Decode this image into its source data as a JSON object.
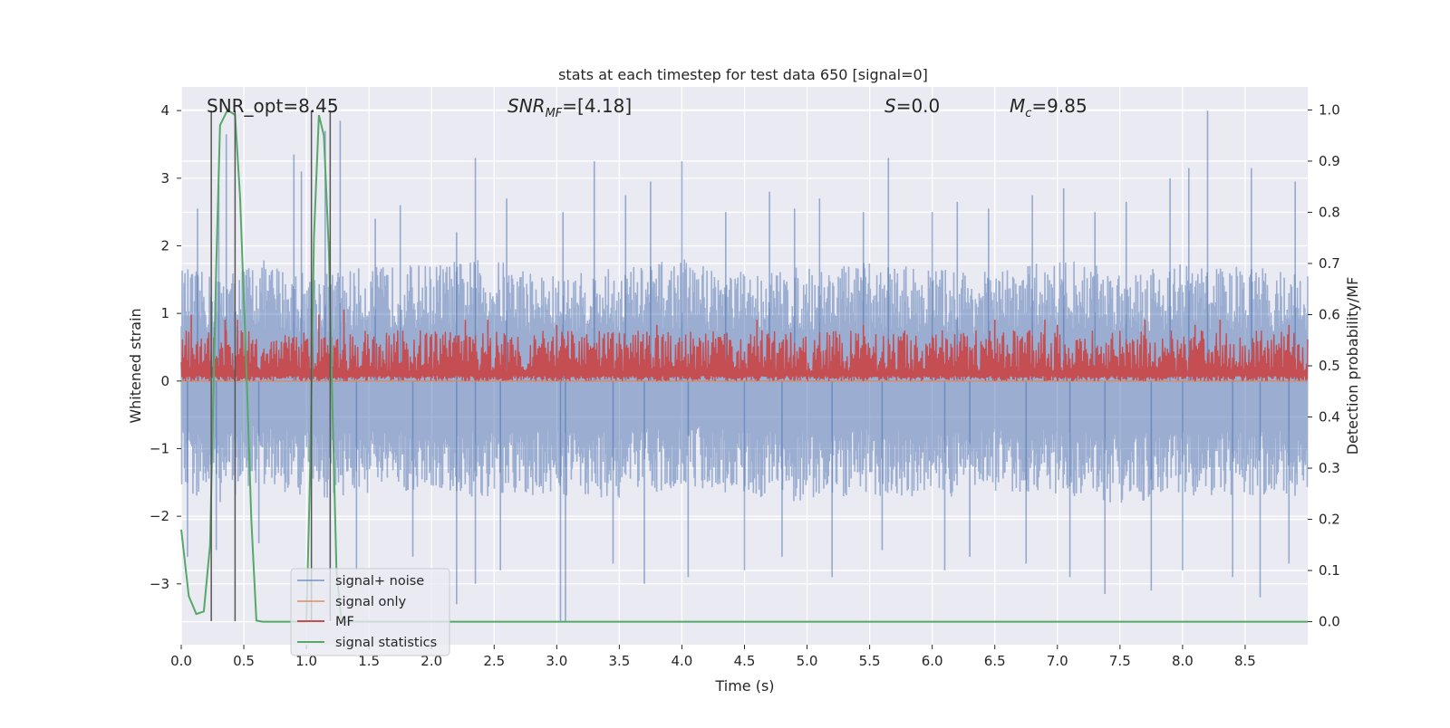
{
  "chart_data": {
    "type": "line",
    "title": "stats at each timestep for test data 650 [signal=0]",
    "xlabel": "Time (s)",
    "ylabel": "Whitened strain",
    "y2label": "Detection probability/MF",
    "xlim": [
      0.0,
      9.0
    ],
    "ylim": [
      -3.9,
      4.35
    ],
    "y2lim": [
      -0.045,
      1.045
    ],
    "xticks": [
      0.0,
      0.5,
      1.0,
      1.5,
      2.0,
      2.5,
      3.0,
      3.5,
      4.0,
      4.5,
      5.0,
      5.5,
      6.0,
      6.5,
      7.0,
      7.5,
      8.0,
      8.5
    ],
    "xtick_labels": [
      "0.0",
      "0.5",
      "1.0",
      "1.5",
      "2.0",
      "2.5",
      "3.0",
      "3.5",
      "4.0",
      "4.5",
      "5.0",
      "5.5",
      "6.0",
      "6.5",
      "7.0",
      "7.5",
      "8.0",
      "8.5"
    ],
    "yticks": [
      4,
      3,
      2,
      1,
      0,
      -1,
      -2,
      -3
    ],
    "ytick_labels": [
      "4",
      "3",
      "2",
      "1",
      "0",
      "−1",
      "−2",
      "−3"
    ],
    "y2ticks": [
      1.0,
      0.9,
      0.8,
      0.7,
      0.6,
      0.5,
      0.4,
      0.3,
      0.2,
      0.1,
      0.0
    ],
    "y2tick_labels": [
      "1.0",
      "0.9",
      "0.8",
      "0.7",
      "0.6",
      "0.5",
      "0.4",
      "0.3",
      "0.2",
      "0.1",
      "0.0"
    ],
    "grid": true,
    "annotations": {
      "snr_opt": "SNR_opt=8.45",
      "snr_mf_main": "SNR",
      "snr_mf_sub": "MF",
      "snr_mf_value": "=[4.18]",
      "s_symbol": "S",
      "s_value": "=0.0",
      "mc_main": "M",
      "mc_sub": "c",
      "mc_value": "=9.85"
    },
    "legend": {
      "position": "lower-left",
      "entries": [
        {
          "label": "signal+ noise",
          "color": "#4c72b0"
        },
        {
          "label": "signal only",
          "color": "#dd8452"
        },
        {
          "label": "MF",
          "color": "#c44e52"
        },
        {
          "label": "signal statistics",
          "color": "#55a868"
        }
      ]
    },
    "series": [
      {
        "name": "signal+ noise",
        "color": "#4c72b0",
        "axis": "left",
        "style": "dense noise band",
        "typical_range": [
          -1.3,
          1.3
        ],
        "noise_band_upper_knots": {
          "x": [
            0.0,
            0.3,
            0.6,
            1.0,
            1.5,
            2.0,
            2.5,
            3.0,
            3.5,
            4.0,
            4.5,
            5.0,
            5.5,
            6.0,
            6.5,
            7.0,
            7.5,
            8.0,
            8.5,
            9.0
          ],
          "y": [
            1.3,
            1.2,
            1.4,
            1.25,
            1.3,
            1.35,
            1.4,
            1.2,
            1.3,
            1.4,
            1.25,
            1.3,
            1.35,
            1.3,
            1.25,
            1.4,
            1.3,
            1.35,
            1.3,
            1.25
          ]
        },
        "noise_band_lower_knots": {
          "x": [
            0.0,
            0.3,
            0.6,
            1.0,
            1.5,
            2.0,
            2.5,
            3.0,
            3.5,
            4.0,
            4.5,
            5.0,
            5.5,
            6.0,
            6.5,
            7.0,
            7.5,
            8.0,
            8.5,
            9.0
          ],
          "y": [
            -1.3,
            -1.4,
            -1.2,
            -1.35,
            -1.3,
            -1.25,
            -1.4,
            -1.3,
            -1.35,
            -1.2,
            -1.3,
            -1.4,
            -1.3,
            -1.35,
            -1.25,
            -1.3,
            -1.4,
            -1.3,
            -1.35,
            -1.3
          ]
        },
        "spikes": {
          "x": [
            0.13,
            0.3,
            0.36,
            0.9,
            0.96,
            1.15,
            1.27,
            1.55,
            1.75,
            2.2,
            2.35,
            2.6,
            3.05,
            3.3,
            3.55,
            3.75,
            4.0,
            4.35,
            4.7,
            4.9,
            5.1,
            5.45,
            5.65,
            6.0,
            6.2,
            6.45,
            6.8,
            7.05,
            7.3,
            7.55,
            7.9,
            8.05,
            8.2,
            8.55,
            8.9,
            0.05,
            0.28,
            0.62,
            1.4,
            1.85,
            2.2,
            2.35,
            2.55,
            3.03,
            3.07,
            3.45,
            3.7,
            4.05,
            4.5,
            4.8,
            5.2,
            5.6,
            6.1,
            6.3,
            6.75,
            7.1,
            7.38,
            7.75,
            8.0,
            8.4,
            8.62,
            8.85
          ],
          "y": [
            2.55,
            2.9,
            3.65,
            3.35,
            3.1,
            3.7,
            3.85,
            2.4,
            2.6,
            2.2,
            3.3,
            2.7,
            2.5,
            3.25,
            2.75,
            2.95,
            3.25,
            2.5,
            2.8,
            2.55,
            2.7,
            2.5,
            3.3,
            2.5,
            2.65,
            2.55,
            2.75,
            2.85,
            2.5,
            2.65,
            3.0,
            3.15,
            4.0,
            3.15,
            2.95,
            -2.6,
            -2.5,
            -2.4,
            -2.8,
            -2.6,
            -3.3,
            -3.0,
            -2.8,
            -3.55,
            -3.55,
            -2.7,
            -3.0,
            -2.9,
            -2.8,
            -2.6,
            -2.9,
            -2.5,
            -2.8,
            -2.6,
            -2.7,
            -2.9,
            -3.15,
            -3.1,
            -2.8,
            -2.9,
            -3.2,
            -2.7
          ]
        }
      },
      {
        "name": "signal only",
        "color": "#dd8452",
        "axis": "left",
        "x": [
          0.0,
          9.0
        ],
        "y": [
          0.0,
          0.0
        ]
      },
      {
        "name": "MF",
        "color": "#c44e52",
        "axis": "right",
        "style": "dense noise band",
        "typical_range": [
          0.47,
          0.57
        ],
        "base_value": 0.47,
        "spikes": {
          "x": [
            0.08,
            0.35,
            0.45,
            1.1,
            1.3,
            2.27,
            2.45,
            3.0,
            3.8,
            4.6,
            5.45,
            6.5,
            6.9,
            7.0,
            7.7,
            8.1,
            8.3,
            8.85
          ],
          "y": [
            0.6,
            0.59,
            0.59,
            0.6,
            0.61,
            0.59,
            0.59,
            0.58,
            0.58,
            0.59,
            0.58,
            0.59,
            0.59,
            0.58,
            0.59,
            0.58,
            0.59,
            0.58
          ]
        }
      },
      {
        "name": "signal statistics",
        "color": "#55a868",
        "axis": "right",
        "x": [
          0.0,
          0.06,
          0.12,
          0.18,
          0.23,
          0.28,
          0.31,
          0.37,
          0.43,
          0.47,
          0.52,
          0.56,
          0.6,
          0.65,
          1.0,
          1.03,
          1.06,
          1.1,
          1.14,
          1.18,
          1.21,
          1.24,
          1.28,
          1.3,
          9.0
        ],
        "y": [
          0.18,
          0.05,
          0.015,
          0.02,
          0.15,
          0.7,
          0.97,
          1.0,
          0.99,
          0.83,
          0.5,
          0.2,
          0.002,
          0.0,
          0.0,
          0.3,
          0.75,
          0.99,
          0.95,
          0.72,
          0.4,
          0.1,
          0.0,
          0.0,
          0.0
        ]
      }
    ],
    "vertical_markers": {
      "color": "#555555",
      "x": [
        0.24,
        0.43,
        1.04,
        1.19
      ],
      "y_from": -3.55,
      "y_to": 4.0
    }
  }
}
